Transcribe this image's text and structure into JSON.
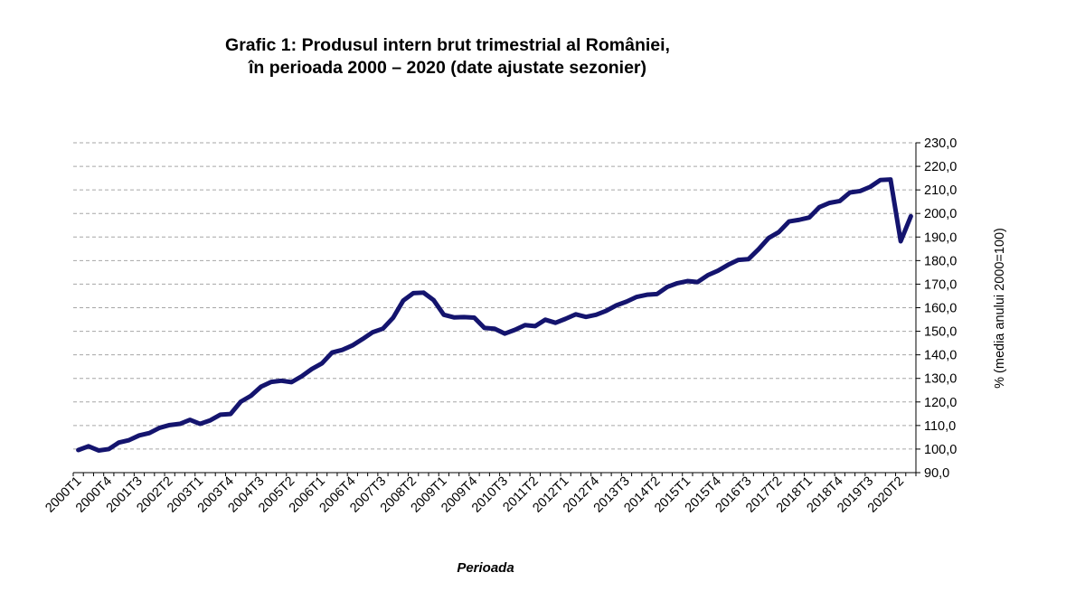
{
  "chart_data": {
    "type": "line",
    "title_line1": "Grafic 1: Produsul intern brut trimestrial al României,",
    "title_line2": "în perioada 2000 – 2020 (date ajustate sezonier)",
    "xlabel": "Perioada",
    "ylabel": "% (media anului 2000=100)",
    "ylim": [
      90,
      230
    ],
    "ytick_step": 10,
    "y_axis_position": "right",
    "grid": true,
    "line_color": "#14146e",
    "x": [
      "2000T1",
      "2000T2",
      "2000T3",
      "2000T4",
      "2001T1",
      "2001T2",
      "2001T3",
      "2001T4",
      "2002T1",
      "2002T2",
      "2002T3",
      "2002T4",
      "2003T1",
      "2003T2",
      "2003T3",
      "2003T4",
      "2004T1",
      "2004T2",
      "2004T3",
      "2004T4",
      "2005T1",
      "2005T2",
      "2005T3",
      "2005T4",
      "2006T1",
      "2006T2",
      "2006T3",
      "2006T4",
      "2007T1",
      "2007T2",
      "2007T3",
      "2007T4",
      "2008T1",
      "2008T2",
      "2008T3",
      "2008T4",
      "2009T1",
      "2009T2",
      "2009T3",
      "2009T4",
      "2010T1",
      "2010T2",
      "2010T3",
      "2010T4",
      "2011T1",
      "2011T2",
      "2011T3",
      "2011T4",
      "2012T1",
      "2012T2",
      "2012T3",
      "2012T4",
      "2013T1",
      "2013T2",
      "2013T3",
      "2013T4",
      "2014T1",
      "2014T2",
      "2014T3",
      "2014T4",
      "2015T1",
      "2015T2",
      "2015T3",
      "2015T4",
      "2016T1",
      "2016T2",
      "2016T3",
      "2016T4",
      "2017T1",
      "2017T2",
      "2017T3",
      "2017T4",
      "2018T1",
      "2018T2",
      "2018T3",
      "2018T4",
      "2019T1",
      "2019T2",
      "2019T3",
      "2019T4",
      "2020T1",
      "2020T2",
      "2020T3"
    ],
    "xticks": [
      "2000T1",
      "2000T4",
      "2001T3",
      "2002T2",
      "2003T1",
      "2003T4",
      "2004T3",
      "2005T2",
      "2006T1",
      "2006T4",
      "2007T3",
      "2008T2",
      "2009T1",
      "2009T4",
      "2010T3",
      "2011T2",
      "2012T1",
      "2012T4",
      "2013T3",
      "2014T2",
      "2015T1",
      "2015T4",
      "2016T3",
      "2017T2",
      "2018T1",
      "2018T4",
      "2019T3",
      "2020T2"
    ],
    "series": [
      {
        "values": [
          99.6,
          101.2,
          99.4,
          100.0,
          102.8,
          103.8,
          105.8,
          106.8,
          109.0,
          110.2,
          110.7,
          112.4,
          110.7,
          112.2,
          114.6,
          114.9,
          120.1,
          122.6,
          126.5,
          128.5,
          129.0,
          128.4,
          130.9,
          134.0,
          136.4,
          141.0,
          142.1,
          144.0,
          146.7,
          149.6,
          151.1,
          155.7,
          163.0,
          166.2,
          166.4,
          163.2,
          157.0,
          155.9,
          156.0,
          155.8,
          151.4,
          151.1,
          149.0,
          150.6,
          152.6,
          152.2,
          154.9,
          153.6,
          155.3,
          157.2,
          156.1,
          157.0,
          158.7,
          161.0,
          162.6,
          164.6,
          165.5,
          165.8,
          168.8,
          170.4,
          171.3,
          170.9,
          173.8,
          175.7,
          178.2,
          180.3,
          180.6,
          184.8,
          189.6,
          192.1,
          196.6,
          197.3,
          198.3,
          202.7,
          204.5,
          205.3,
          208.9,
          209.5,
          211.3,
          214.2,
          214.4,
          188.2,
          198.8
        ]
      }
    ]
  }
}
